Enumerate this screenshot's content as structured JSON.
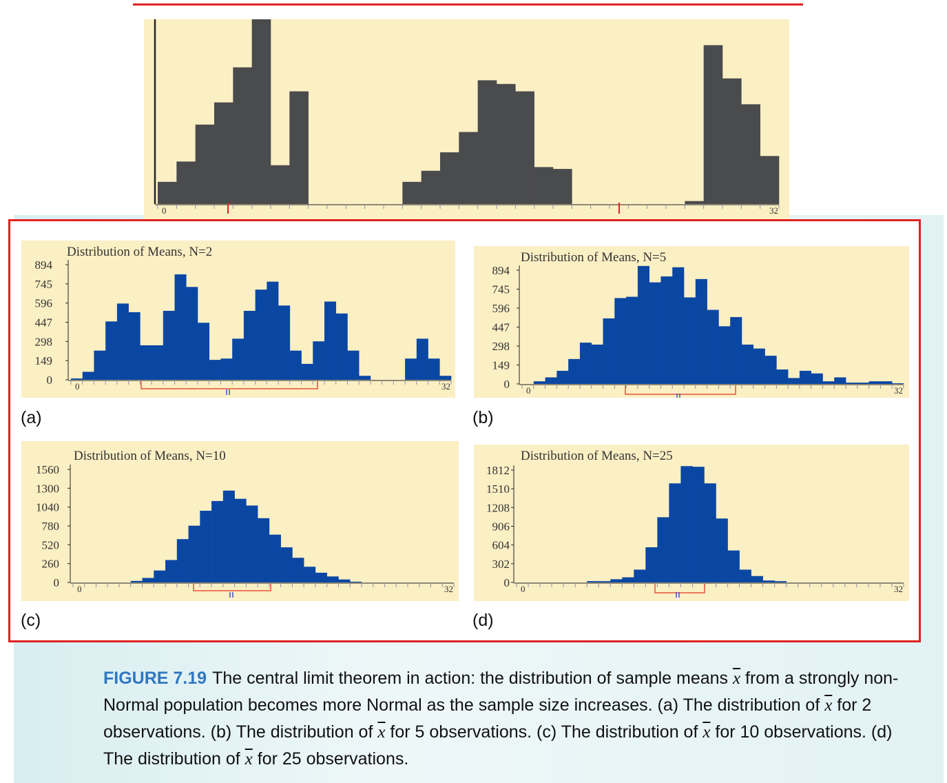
{
  "colors": {
    "population_bar": "#4a4b4d",
    "mean_bar": "#0a47a3",
    "panel_bg": "#fbefc4",
    "accent_red": "#e02121",
    "figure_label": "#2f77c1"
  },
  "chart_data": [
    {
      "id": "population",
      "type": "bar",
      "title": "",
      "xlim": [
        0,
        32
      ],
      "x_tick_labels": [
        "0",
        "32"
      ],
      "values": [
        120,
        230,
        430,
        550,
        740,
        1000,
        210,
        610,
        0,
        0,
        0,
        0,
        0,
        120,
        180,
        280,
        390,
        670,
        650,
        610,
        200,
        190,
        0,
        0,
        0,
        0,
        0,
        0,
        16,
        860,
        680,
        540,
        260
      ]
    },
    {
      "id": "a",
      "type": "bar",
      "title": "Distribution of Means, N=2",
      "xlim": [
        0,
        32
      ],
      "y_tick_labels": [
        "894",
        "745",
        "596",
        "447",
        "298",
        "149",
        "0"
      ],
      "x_tick_labels": [
        "0",
        "32"
      ],
      "values": [
        10,
        60,
        220,
        440,
        575,
        510,
        260,
        260,
        520,
        795,
        700,
        430,
        150,
        160,
        310,
        520,
        680,
        740,
        560,
        220,
        120,
        290,
        590,
        500,
        220,
        30,
        0,
        0,
        0,
        160,
        310,
        160,
        30
      ]
    },
    {
      "id": "b",
      "type": "bar",
      "title": "Distribution of Means, N=5",
      "xlim": [
        0,
        32
      ],
      "y_tick_labels": [
        "894",
        "745",
        "596",
        "447",
        "298",
        "149",
        "0"
      ],
      "x_tick_labels": [
        "0",
        "32"
      ],
      "values": [
        0,
        20,
        50,
        100,
        190,
        315,
        300,
        500,
        655,
        665,
        900,
        775,
        820,
        890,
        660,
        800,
        565,
        440,
        510,
        300,
        270,
        215,
        110,
        45,
        100,
        80,
        20,
        50,
        10,
        10,
        20,
        20,
        5
      ]
    },
    {
      "id": "c",
      "type": "bar",
      "title": "Distribution of Means, N=10",
      "xlim": [
        0,
        32
      ],
      "y_tick_labels": [
        "1560",
        "1300",
        "1040",
        "780",
        "520",
        "260",
        "0"
      ],
      "x_tick_labels": [
        "0",
        "32"
      ],
      "values": [
        0,
        0,
        0,
        0,
        0,
        20,
        60,
        160,
        300,
        580,
        760,
        960,
        1090,
        1230,
        1120,
        1030,
        860,
        640,
        470,
        330,
        210,
        130,
        80,
        40,
        10,
        0,
        0,
        0,
        0,
        0,
        0,
        0,
        0
      ]
    },
    {
      "id": "d",
      "type": "bar",
      "title": "Distribution of Means, N=25",
      "xlim": [
        0,
        32
      ],
      "y_tick_labels": [
        "1812",
        "1510",
        "1208",
        "906",
        "604",
        "302",
        "0"
      ],
      "x_tick_labels": [
        "0",
        "32"
      ],
      "values": [
        0,
        0,
        0,
        0,
        0,
        0,
        20,
        20,
        50,
        80,
        200,
        550,
        1020,
        1550,
        1820,
        1810,
        1550,
        1000,
        500,
        200,
        100,
        30,
        20,
        0,
        0,
        0,
        0,
        0,
        0,
        0,
        0,
        0,
        0
      ]
    }
  ],
  "panel_labels": {
    "a": "(a)",
    "b": "(b)",
    "c": "(c)",
    "d": "(d)"
  },
  "caption": {
    "figure_number": "FIGURE 7.19",
    "part1": "The central limit theorem in action: the distribution of sample means ",
    "x_symbol": "x",
    "part2": " from a strongly non-Normal population becomes more Normal as the sample size increases. (a) The distribution of ",
    "part3": " for 2 observations. (b) The distribution of ",
    "part4": " for 5 observations. (c) The distribution of ",
    "part5": " for 10 observations. (d) The distribution of ",
    "part6": " for 25 observations."
  }
}
